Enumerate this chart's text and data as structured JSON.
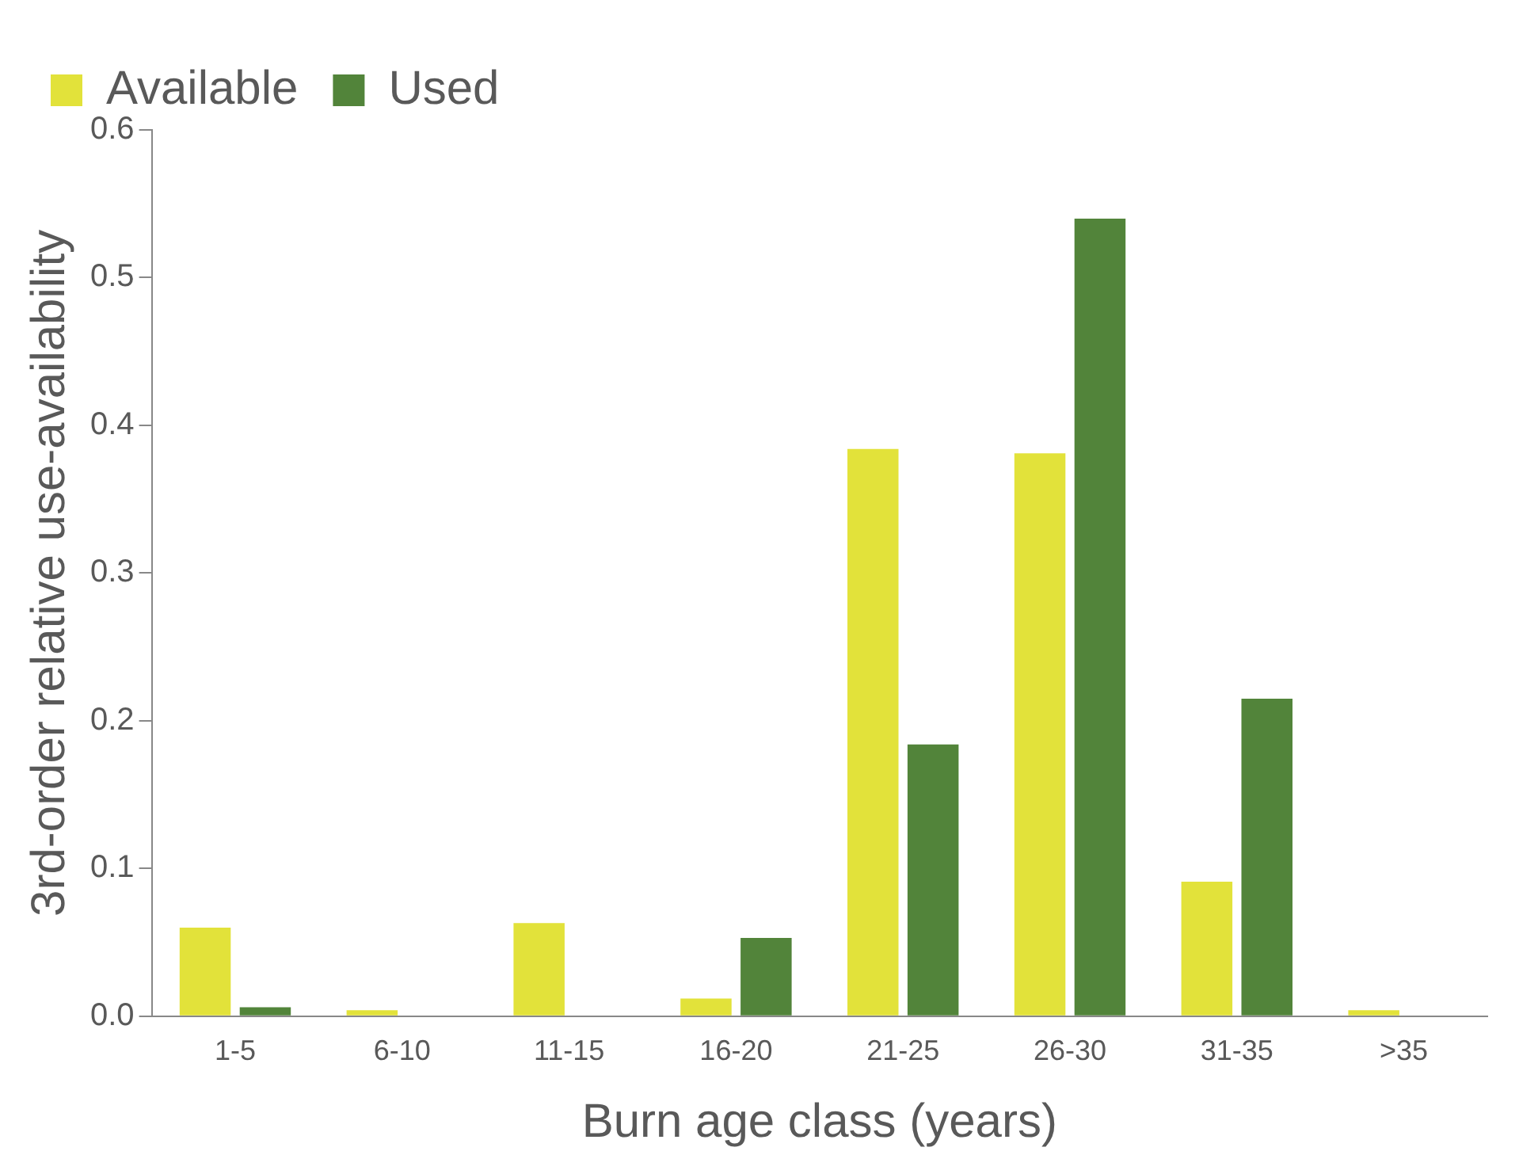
{
  "chart_data": {
    "type": "bar",
    "xlabel": "Burn age class (years)",
    "ylabel": "3rd-order relative use-availability",
    "categories": [
      "1-5",
      "6-10",
      "11-15",
      "16-20",
      "21-25",
      "26-30",
      "31-35",
      ">35"
    ],
    "series": [
      {
        "name": "Available",
        "color": "#e2e23a",
        "values": [
          0.06,
          0.004,
          0.063,
          0.012,
          0.384,
          0.381,
          0.091,
          0.004
        ]
      },
      {
        "name": "Used",
        "color": "#52843a",
        "values": [
          0.006,
          0,
          0,
          0.053,
          0.184,
          0.54,
          0.215,
          0
        ]
      }
    ],
    "ylim": [
      0,
      0.6
    ],
    "yticks": [
      {
        "value": 0,
        "label": "0.0"
      },
      {
        "value": 0.1,
        "label": "0.1"
      },
      {
        "value": 0.2,
        "label": "0.2"
      },
      {
        "value": 0.3,
        "label": "0.3"
      },
      {
        "value": 0.4,
        "label": "0.4"
      },
      {
        "value": 0.5,
        "label": "0.5"
      },
      {
        "value": 0.6,
        "label": "0.6"
      }
    ],
    "grid": false,
    "legend": "top left"
  }
}
